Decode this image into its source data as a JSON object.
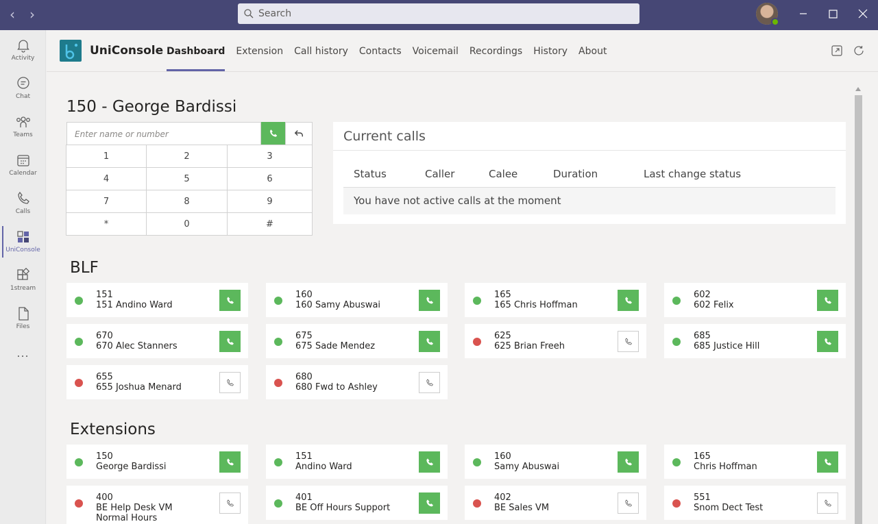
{
  "titlebar": {
    "search_placeholder": "Search"
  },
  "rail": {
    "items": [
      {
        "label": "Activity"
      },
      {
        "label": "Chat"
      },
      {
        "label": "Teams"
      },
      {
        "label": "Calendar"
      },
      {
        "label": "Calls"
      },
      {
        "label": "UniConsole"
      },
      {
        "label": "1stream"
      },
      {
        "label": "Files"
      }
    ],
    "more": "..."
  },
  "app": {
    "name": "UniConsole",
    "tabs": [
      "Dashboard",
      "Extension",
      "Call history",
      "Contacts",
      "Voicemail",
      "Recordings",
      "History",
      "About"
    ],
    "active_tab": "Dashboard"
  },
  "dashboard": {
    "extension_title": "150 - George Bardissi",
    "dial_placeholder": "Enter name or number",
    "keypad": [
      "1",
      "2",
      "3",
      "4",
      "5",
      "6",
      "7",
      "8",
      "9",
      "*",
      "0",
      "#"
    ],
    "current_calls": {
      "title": "Current calls",
      "columns": [
        "Status",
        "Caller",
        "Calee",
        "Duration",
        "Last change status"
      ],
      "empty_message": "You have not active calls at the moment"
    },
    "blf": {
      "title": "BLF",
      "items": [
        {
          "number": "151",
          "name": "151 Andino Ward",
          "status": "available"
        },
        {
          "number": "160",
          "name": "160 Samy Abuswai",
          "status": "available"
        },
        {
          "number": "165",
          "name": "165 Chris Hoffman",
          "status": "available"
        },
        {
          "number": "602",
          "name": "602 Felix",
          "status": "available"
        },
        {
          "number": "670",
          "name": "670 Alec Stanners",
          "status": "available"
        },
        {
          "number": "675",
          "name": "675 Sade Mendez",
          "status": "available"
        },
        {
          "number": "625",
          "name": "625 Brian Freeh",
          "status": "unavailable"
        },
        {
          "number": "685",
          "name": "685 Justice Hill",
          "status": "available"
        },
        {
          "number": "655",
          "name": "655 Joshua Menard",
          "status": "unavailable"
        },
        {
          "number": "680",
          "name": "680 Fwd to Ashley",
          "status": "unavailable"
        }
      ]
    },
    "extensions": {
      "title": "Extensions",
      "items": [
        {
          "number": "150",
          "name": "George Bardissi",
          "extra": "",
          "status": "available"
        },
        {
          "number": "151",
          "name": "Andino Ward",
          "extra": "",
          "status": "available"
        },
        {
          "number": "160",
          "name": "Samy Abuswai",
          "extra": "",
          "status": "available"
        },
        {
          "number": "165",
          "name": "Chris Hoffman",
          "extra": "",
          "status": "available"
        },
        {
          "number": "400",
          "name": "BE Help Desk VM",
          "extra": "Normal Hours",
          "status": "unavailable"
        },
        {
          "number": "401",
          "name": "BE Off Hours Support",
          "extra": "",
          "status": "available"
        },
        {
          "number": "402",
          "name": "BE Sales VM",
          "extra": "",
          "status": "unavailable"
        },
        {
          "number": "551",
          "name": "Snom Dect Test",
          "extra": "",
          "status": "unavailable"
        }
      ]
    }
  },
  "colors": {
    "titlebar": "#464775",
    "accent": "#6264a7",
    "available": "#5cb85c",
    "unavailable": "#d9534f"
  }
}
